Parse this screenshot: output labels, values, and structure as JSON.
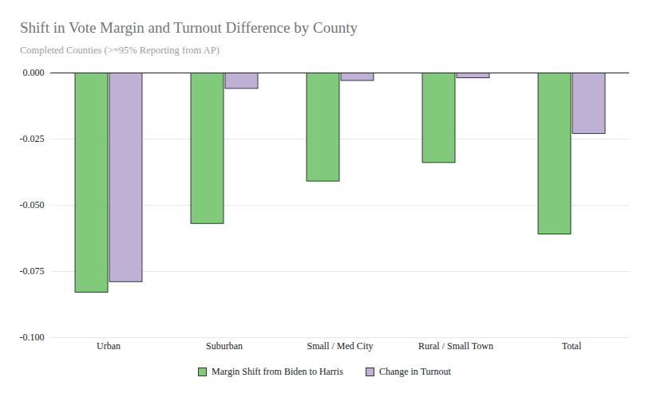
{
  "chart_data": {
    "type": "bar",
    "title": "Shift in Vote Margin and Turnout Difference by County",
    "subtitle": "Completed Counties (>=95% Reporting from AP)",
    "categories": [
      "Urban",
      "Suburban",
      "Small / Med City",
      "Rural / Small Town",
      "Total"
    ],
    "series": [
      {
        "name": "Margin Shift from Biden to Harris",
        "color": "#81c97b",
        "values": [
          -0.083,
          -0.057,
          -0.041,
          -0.034,
          -0.061
        ]
      },
      {
        "name": "Change in Turnout",
        "color": "#bfb1d5",
        "values": [
          -0.079,
          -0.006,
          -0.003,
          -0.002,
          -0.023
        ]
      }
    ],
    "ylim": [
      -0.1,
      0
    ],
    "yticks": [
      {
        "value": 0,
        "label": "0.000"
      },
      -0.025,
      {
        "value": -0.05,
        "label": "-0.050"
      },
      -0.075,
      {
        "value": -0.1,
        "label": "-0.100"
      }
    ],
    "grid": true,
    "legend": "bottom"
  }
}
